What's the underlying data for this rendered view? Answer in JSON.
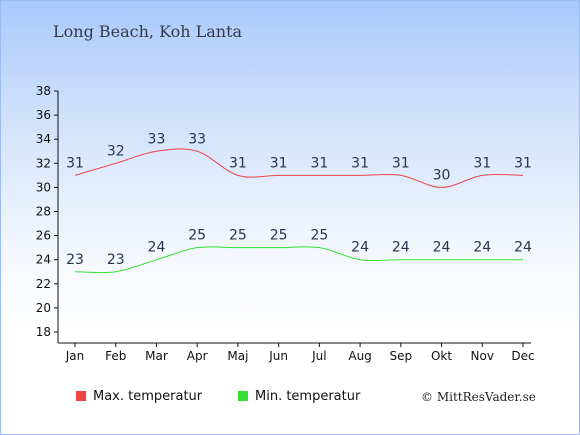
{
  "chart_data": {
    "type": "line",
    "title": "Long Beach, Koh Lanta",
    "categories": [
      "Jan",
      "Feb",
      "Mar",
      "Apr",
      "Maj",
      "Jun",
      "Jul",
      "Aug",
      "Sep",
      "Okt",
      "Nov",
      "Dec"
    ],
    "ylim": [
      18,
      38
    ],
    "yticks": [
      18,
      20,
      22,
      24,
      26,
      28,
      30,
      32,
      34,
      36,
      38
    ],
    "grid": false,
    "legend_position": "bottom",
    "series": [
      {
        "name": "Max. temperatur",
        "color": "#ee4444",
        "values": [
          31,
          32,
          33,
          33,
          31,
          31,
          31,
          31,
          31,
          30,
          31,
          31
        ]
      },
      {
        "name": "Min. temperatur",
        "color": "#33e033",
        "values": [
          23,
          23,
          24,
          25,
          25,
          25,
          25,
          24,
          24,
          24,
          24,
          24
        ]
      }
    ]
  },
  "copyright": "© MittResVader.se"
}
